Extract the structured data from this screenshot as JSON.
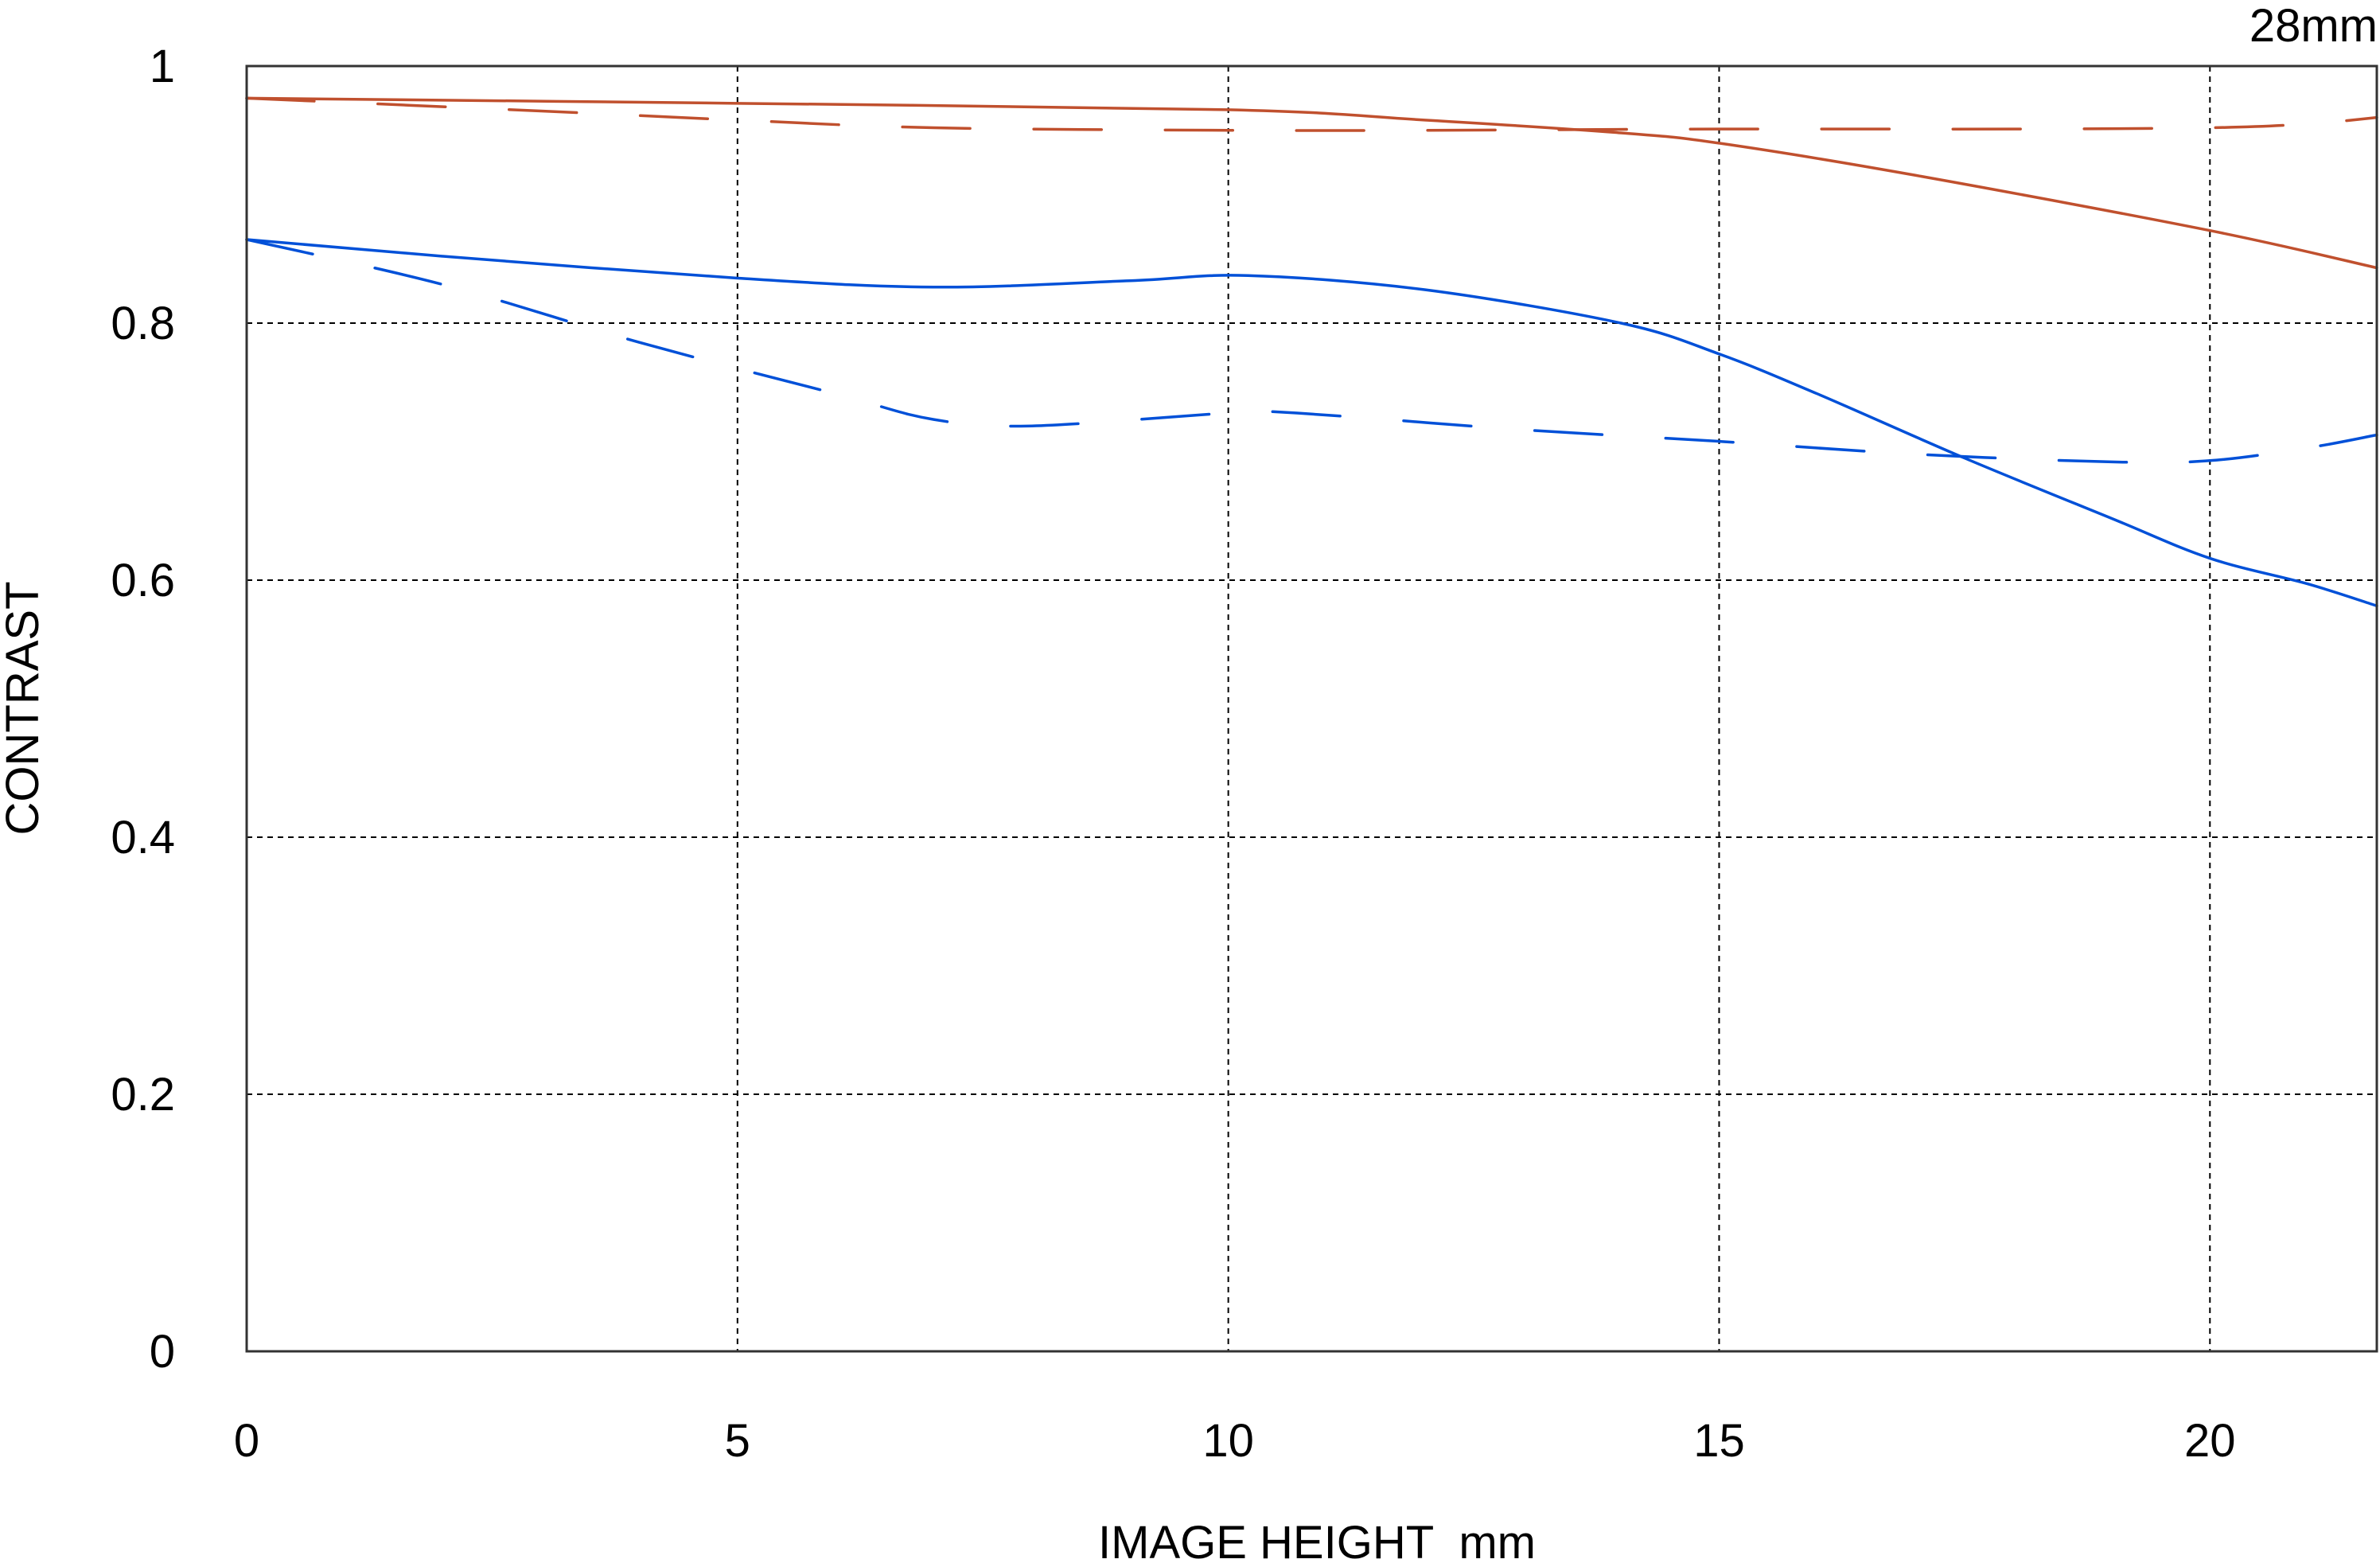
{
  "chart_data": {
    "type": "line",
    "title": "28mm",
    "xlabel": "IMAGE HEIGHT  mm",
    "ylabel": "CONTRAST",
    "xlim": [
      0,
      21.7
    ],
    "ylim": [
      0,
      1
    ],
    "xticks": [
      0,
      5,
      10,
      15,
      20
    ],
    "xtick_labels": [
      "0",
      "5",
      "10",
      "15",
      "20"
    ],
    "yticks": [
      0,
      0.2,
      0.4,
      0.6,
      0.8,
      1
    ],
    "ytick_labels": [
      "0",
      "0.2",
      "0.4",
      "0.6",
      "0.8",
      "1"
    ],
    "grid": true,
    "legend": "none",
    "series": [
      {
        "color": "#c0502e",
        "style": "solid",
        "x": [
          0,
          5,
          10,
          12,
          14,
          15,
          17,
          20,
          21.7
        ],
        "y": [
          0.975,
          0.971,
          0.966,
          0.958,
          0.948,
          0.94,
          0.915,
          0.872,
          0.843
        ]
      },
      {
        "color": "#c0502e",
        "style": "dashed",
        "x": [
          0,
          3,
          5,
          7,
          10,
          12,
          15,
          18,
          20,
          21,
          21.7
        ],
        "y": [
          0.975,
          0.965,
          0.958,
          0.952,
          0.95,
          0.95,
          0.951,
          0.951,
          0.952,
          0.955,
          0.96
        ]
      },
      {
        "color": "#0050d8",
        "style": "solid",
        "x": [
          0,
          2,
          5,
          7,
          9,
          10.2,
          12,
          14,
          15,
          16,
          17.5,
          19,
          20,
          21,
          21.7
        ],
        "y": [
          0.865,
          0.852,
          0.835,
          0.828,
          0.833,
          0.837,
          0.826,
          0.8,
          0.776,
          0.745,
          0.695,
          0.648,
          0.617,
          0.597,
          0.58
        ]
      },
      {
        "color": "#0050d8",
        "style": "dashed",
        "x": [
          0,
          2,
          4,
          6,
          7,
          8,
          10,
          10.7,
          13,
          15,
          17,
          19,
          20,
          21,
          21.7
        ],
        "y": [
          0.865,
          0.83,
          0.785,
          0.745,
          0.725,
          0.72,
          0.73,
          0.73,
          0.717,
          0.708,
          0.698,
          0.692,
          0.693,
          0.703,
          0.713
        ]
      }
    ]
  }
}
